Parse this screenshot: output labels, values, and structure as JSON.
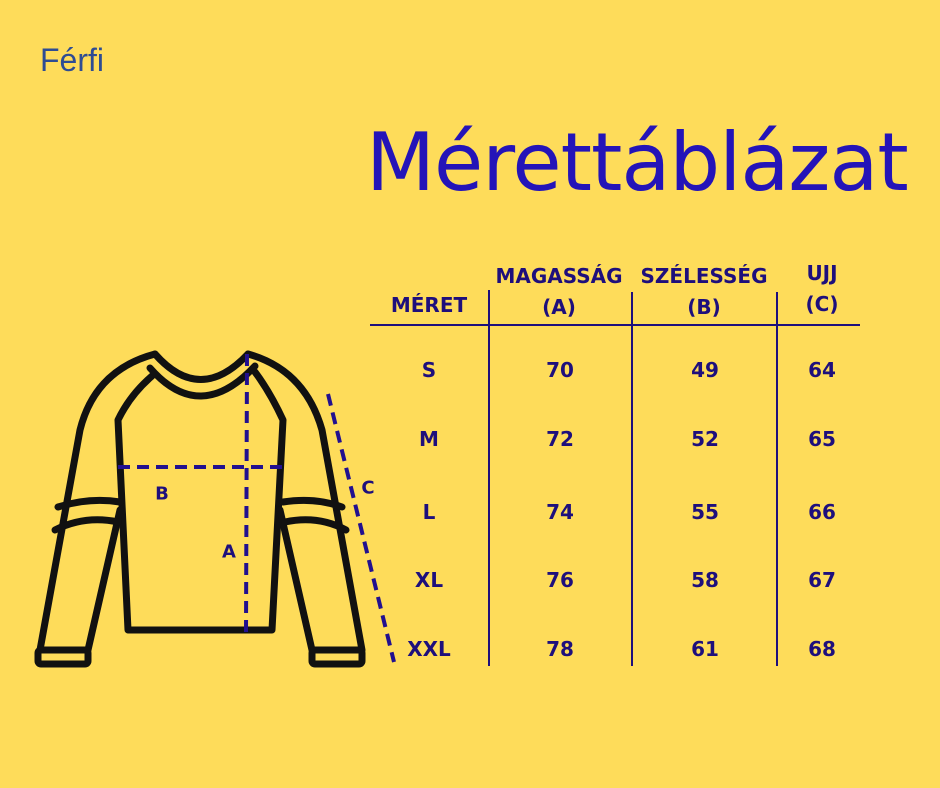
{
  "gender_label": "Férfi",
  "title": "Mérettáblázat",
  "colors": {
    "background": "#FEDC5A",
    "text": "#1E0F7C",
    "title": "#2414B8"
  },
  "diagram_labels": {
    "a": "A",
    "b": "B",
    "c": "C"
  },
  "table": {
    "headers": [
      {
        "line1": "MÉRET",
        "line2": ""
      },
      {
        "line1": "MAGASSÁG",
        "line2": "(A)"
      },
      {
        "line1": "SZÉLESSÉG",
        "line2": "(B)"
      },
      {
        "line1": "UJJ",
        "line2": "(C)"
      }
    ],
    "rows": [
      [
        "S",
        "70",
        "49",
        "64"
      ],
      [
        "M",
        "72",
        "52",
        "65"
      ],
      [
        "L",
        "74",
        "55",
        "66"
      ],
      [
        "XL",
        "76",
        "58",
        "67"
      ],
      [
        "XXL",
        "78",
        "61",
        "68"
      ]
    ]
  }
}
